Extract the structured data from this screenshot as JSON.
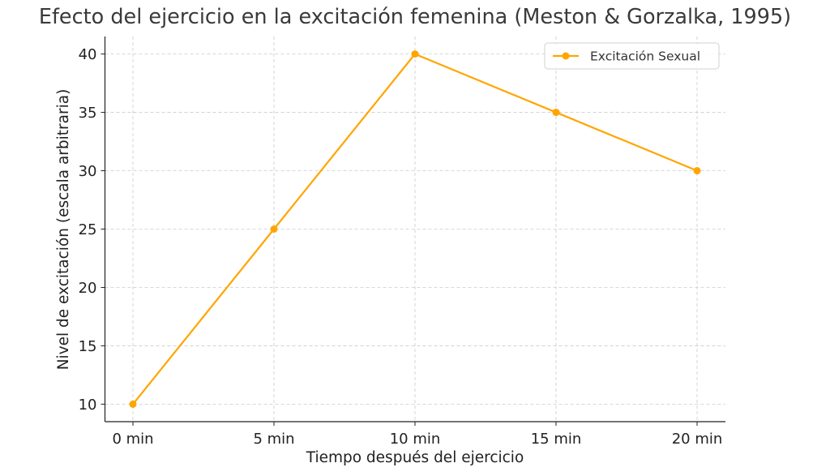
{
  "chart_data": {
    "type": "line",
    "title": "Efecto del ejercicio en la excitación femenina (Meston & Gorzalka, 1995)",
    "xlabel": "Tiempo después del ejercicio",
    "ylabel": "Nivel de excitación (escala arbitraria)",
    "categories": [
      "0 min",
      "5 min",
      "10 min",
      "15 min",
      "20 min"
    ],
    "series": [
      {
        "name": "Excitación Sexual",
        "values": [
          10,
          25,
          40,
          35,
          30
        ],
        "color": "#FFA500"
      }
    ],
    "ylim": [
      8.5,
      41.5
    ],
    "yticks": [
      10,
      15,
      20,
      25,
      30,
      35,
      40
    ],
    "grid": true,
    "legend_position": "top-right",
    "marker": "circle"
  }
}
